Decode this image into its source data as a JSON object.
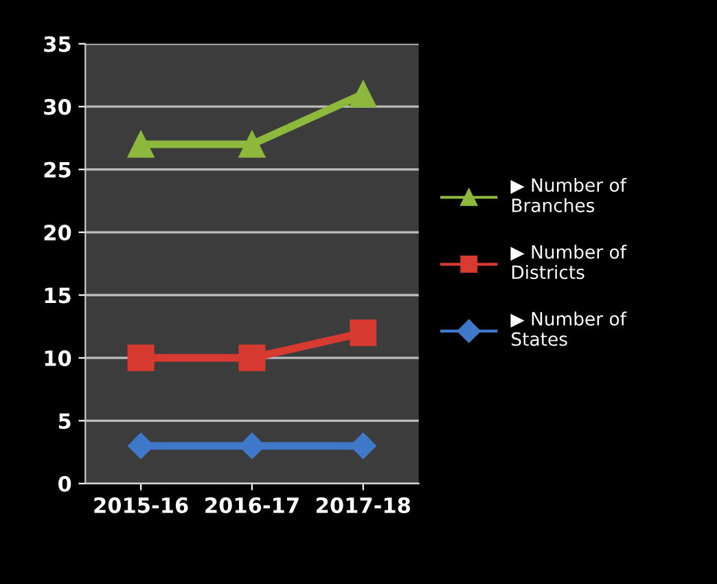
{
  "chart_data": {
    "type": "line",
    "categories": [
      "2015-16",
      "2016-17",
      "2017-18"
    ],
    "series": [
      {
        "name": "▶ Number of Branches",
        "color": "#8db83c",
        "marker": "triangle",
        "values": [
          27,
          27,
          31
        ]
      },
      {
        "name": "▶ Number of Districts",
        "color": "#d63a30",
        "marker": "square",
        "values": [
          10,
          10,
          12
        ]
      },
      {
        "name": "▶ Number of States",
        "color": "#3f78c8",
        "marker": "diamond",
        "values": [
          3,
          3,
          3
        ]
      }
    ],
    "ylim": [
      0,
      35
    ],
    "yticks": [
      0,
      5,
      10,
      15,
      20,
      25,
      30,
      35
    ],
    "grid": "y",
    "legend": "right",
    "line_style": "solid"
  }
}
